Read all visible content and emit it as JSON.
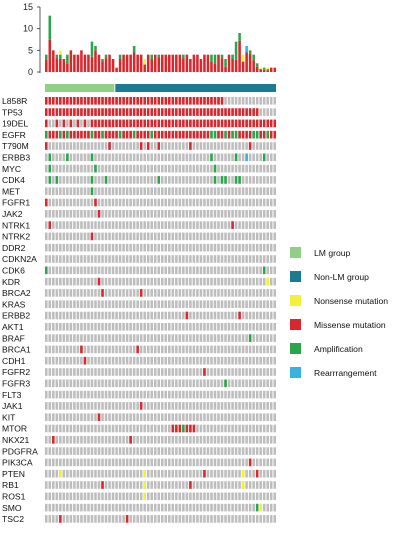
{
  "chart_data": {
    "type": "heatmap",
    "group_bar": [
      {
        "label": "LM group",
        "samples": 20,
        "color": "#8fcf86"
      },
      {
        "label": "Non-LM group",
        "samples": 46,
        "color": "#1a7b93"
      }
    ],
    "top_bar_axis": {
      "ticks": [
        0,
        5,
        10,
        15
      ],
      "ylim": [
        0,
        15
      ]
    },
    "genes": [
      "L858R",
      "TP53",
      "19DEL",
      "EGFR",
      "T790M",
      "ERBB3",
      "MYC",
      "CDK4",
      "MET",
      "FGFR1",
      "JAK2",
      "NTRK1",
      "NTRK2",
      "DDR2",
      "CDKN2A",
      "CDK6",
      "KDR",
      "BRCA2",
      "KRAS",
      "ERBB2",
      "AKT1",
      "BRAF",
      "BRCA1",
      "CDH1",
      "FGFR2",
      "FGFR3",
      "FLT3",
      "JAK1",
      "KIT",
      "MTOR",
      "NKX21",
      "PDGFRA",
      "PIK3CA",
      "PTEN",
      "RB1",
      "ROS1",
      "SMO",
      "TSC2"
    ],
    "legend": [
      {
        "label": "LM group",
        "color": "#8fcf86"
      },
      {
        "label": "Non-LM group",
        "color": "#1a7b93"
      },
      {
        "label": "Nonsense mutation",
        "color": "#f3ef3a"
      },
      {
        "label": "Missense mutation",
        "color": "#d8282e"
      },
      {
        "label": "Amplification",
        "color": "#29a64a"
      },
      {
        "label": "Rearrrangement",
        "color": "#35b3e3"
      }
    ],
    "codes": {
      "M": "Missense mutation",
      "A": "Amplification",
      "N": "Nonsense mutation",
      "R": "Rearrrangement"
    },
    "n_samples": 66,
    "empty_cell_color": "#bdbdbd",
    "top_bar_totals": [
      4,
      13,
      5,
      4,
      5,
      3,
      4,
      5,
      4,
      4,
      5,
      4,
      4,
      7,
      6,
      4,
      3,
      4,
      4,
      3,
      1,
      4,
      4,
      4,
      4,
      6,
      4,
      4,
      3,
      4,
      4,
      4,
      4,
      4,
      4,
      4,
      4,
      4,
      4,
      4,
      4,
      3,
      4,
      4,
      3,
      4,
      4,
      4,
      4,
      4,
      4,
      3,
      4,
      4,
      7,
      9,
      4,
      6,
      5,
      4,
      2,
      1,
      1,
      1,
      1,
      1
    ],
    "mutations": [
      {
        "gene": "L858R",
        "samples": [
          0,
          1,
          2,
          3,
          4,
          5,
          6,
          7,
          8,
          9,
          10,
          11,
          12,
          13,
          14,
          15,
          16,
          17,
          18,
          19,
          20,
          21,
          22,
          23,
          24,
          25,
          26,
          27,
          28,
          29,
          30,
          31,
          32,
          33,
          34,
          35,
          36,
          37,
          38,
          39,
          40,
          41,
          42,
          43,
          44,
          45,
          46,
          47,
          48,
          49,
          50
        ],
        "type": "M"
      },
      {
        "gene": "TP53",
        "samples": [
          0,
          1,
          2,
          3,
          4,
          5,
          6,
          7,
          8,
          9,
          10,
          11,
          12,
          13,
          14,
          15,
          16,
          17,
          18,
          19,
          20,
          21,
          22,
          23,
          24,
          25,
          26,
          27,
          28,
          29,
          30,
          31,
          32,
          33,
          34,
          35,
          36,
          37,
          38,
          39,
          40,
          41,
          42,
          43,
          44,
          45,
          46,
          47,
          48,
          49,
          50,
          51,
          52,
          53,
          54,
          55,
          56,
          57,
          58,
          59,
          60
        ],
        "type": "M"
      },
      {
        "gene": "19DEL",
        "samples": [
          0,
          3,
          5,
          7,
          9,
          11,
          13,
          14,
          15,
          16,
          17,
          18,
          19,
          20,
          21,
          22,
          23,
          24,
          25,
          26,
          27,
          28,
          29,
          30,
          31,
          32,
          33,
          34,
          35,
          36,
          37,
          38,
          39,
          40,
          41,
          42,
          43,
          44,
          45,
          46,
          47,
          48,
          49,
          50,
          51,
          52,
          53,
          54,
          55,
          56,
          57,
          58,
          59,
          60,
          61,
          62,
          63,
          64,
          65
        ],
        "type": "M"
      },
      {
        "gene": "EGFR",
        "samples": [
          0,
          4,
          6,
          13,
          16,
          21,
          25,
          30,
          47,
          48,
          51,
          53,
          54,
          59,
          60,
          63
        ],
        "type": "A"
      },
      {
        "gene": "EGFR",
        "samples": [
          1,
          2,
          3,
          5,
          7,
          8,
          9,
          10,
          11,
          12,
          14,
          15,
          17,
          18,
          19,
          20,
          22,
          23,
          24,
          26,
          27,
          28,
          29,
          31,
          32,
          33,
          34,
          35,
          36,
          37,
          38,
          39,
          40,
          41,
          42,
          43,
          44,
          45,
          46,
          49,
          50,
          52,
          55,
          56,
          57,
          58,
          61,
          62,
          64,
          65
        ],
        "type": "M"
      },
      {
        "gene": "T790M",
        "samples": [
          0,
          18,
          27,
          29,
          32,
          41,
          58
        ],
        "type": "M"
      },
      {
        "gene": "ERBB3",
        "samples": [
          1,
          6,
          13,
          47,
          54,
          62
        ],
        "type": "A"
      },
      {
        "gene": "ERBB3",
        "samples": [
          57
        ],
        "type": "R"
      },
      {
        "gene": "MYC",
        "samples": [
          1,
          14,
          48
        ],
        "type": "A"
      },
      {
        "gene": "CDK4",
        "samples": [
          1,
          3,
          13,
          17,
          32,
          48,
          50,
          51,
          54,
          55
        ],
        "type": "A"
      },
      {
        "gene": "MET",
        "samples": [
          13
        ],
        "type": "A"
      },
      {
        "gene": "FGFR1",
        "samples": [
          0,
          14
        ],
        "type": "M"
      },
      {
        "gene": "JAK2",
        "samples": [
          15
        ],
        "type": "M"
      },
      {
        "gene": "NTRK1",
        "samples": [
          1,
          53
        ],
        "type": "M"
      },
      {
        "gene": "NTRK2",
        "samples": [
          13
        ],
        "type": "M"
      },
      {
        "gene": "DDR2",
        "samples": [],
        "type": "M"
      },
      {
        "gene": "CDKN2A",
        "samples": [],
        "type": "M"
      },
      {
        "gene": "CDK6",
        "samples": [
          0,
          62
        ],
        "type": "A"
      },
      {
        "gene": "KDR",
        "samples": [
          15
        ],
        "type": "M"
      },
      {
        "gene": "KDR",
        "samples": [
          63
        ],
        "type": "N"
      },
      {
        "gene": "BRCA2",
        "samples": [
          16,
          27
        ],
        "type": "M"
      },
      {
        "gene": "KRAS",
        "samples": [],
        "type": "M"
      },
      {
        "gene": "ERBB2",
        "samples": [
          40,
          55
        ],
        "type": "M"
      },
      {
        "gene": "AKT1",
        "samples": [],
        "type": "M"
      },
      {
        "gene": "BRAF",
        "samples": [
          58
        ],
        "type": "A"
      },
      {
        "gene": "BRCA1",
        "samples": [
          10,
          26
        ],
        "type": "M"
      },
      {
        "gene": "CDH1",
        "samples": [
          11
        ],
        "type": "M"
      },
      {
        "gene": "FGFR2",
        "samples": [
          45
        ],
        "type": "M"
      },
      {
        "gene": "FGFR3",
        "samples": [
          51
        ],
        "type": "A"
      },
      {
        "gene": "JAK1",
        "samples": [
          27
        ],
        "type": "M"
      },
      {
        "gene": "KIT",
        "samples": [
          15
        ],
        "type": "M"
      },
      {
        "gene": "MTOR",
        "samples": [
          36,
          37,
          38,
          40,
          41,
          42
        ],
        "type": "M"
      },
      {
        "gene": "MTOR",
        "samples": [
          39
        ],
        "type": "A"
      },
      {
        "gene": "NKX21",
        "samples": [
          2,
          24
        ],
        "type": "M"
      },
      {
        "gene": "PIK3CA",
        "samples": [
          58
        ],
        "type": "M"
      },
      {
        "gene": "PTEN",
        "samples": [
          4,
          28,
          56
        ],
        "type": "N"
      },
      {
        "gene": "PTEN",
        "samples": [
          45,
          60
        ],
        "type": "M"
      },
      {
        "gene": "RB1",
        "samples": [
          16,
          41
        ],
        "type": "M"
      },
      {
        "gene": "RB1",
        "samples": [
          28,
          56
        ],
        "type": "N"
      },
      {
        "gene": "ROS1",
        "samples": [
          28
        ],
        "type": "N"
      },
      {
        "gene": "SMO",
        "samples": [
          60
        ],
        "type": "A"
      },
      {
        "gene": "SMO",
        "samples": [
          61
        ],
        "type": "N"
      },
      {
        "gene": "TSC2",
        "samples": [
          4,
          23
        ],
        "type": "M"
      }
    ]
  }
}
